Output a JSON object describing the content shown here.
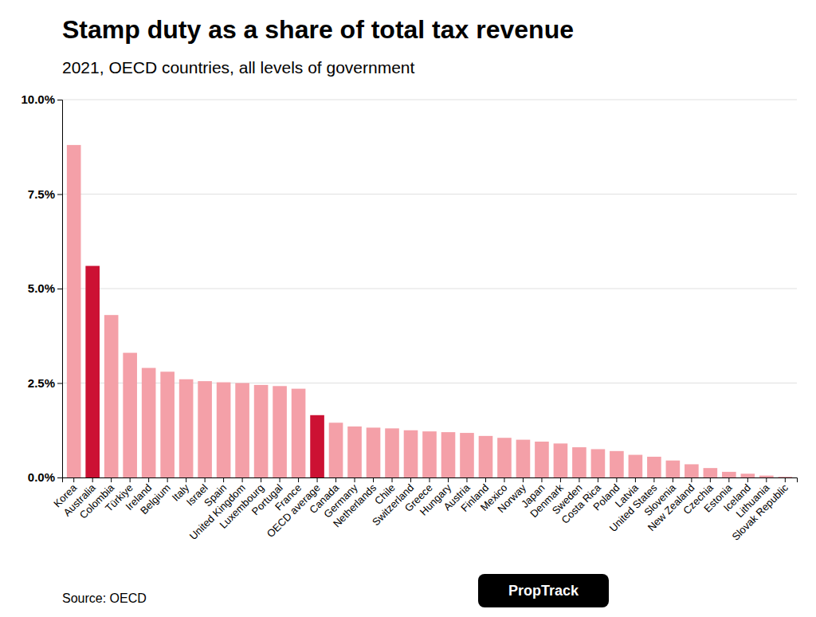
{
  "chart_data": {
    "type": "bar",
    "title": "Stamp duty as a share of total tax revenue",
    "subtitle": "2021, OECD countries, all levels of government",
    "source": "Source: OECD",
    "annotations": [
      "PropTrack"
    ],
    "categories": [
      "Korea",
      "Australia",
      "Colombia",
      "Türkiye",
      "Ireland",
      "Belgium",
      "Italy",
      "Israel",
      "Spain",
      "United Kingdom",
      "Luxembourg",
      "Portugal",
      "France",
      "OECD average",
      "Canada",
      "Germany",
      "Netherlands",
      "Chile",
      "Switzerland",
      "Greece",
      "Hungary",
      "Austria",
      "Finland",
      "Mexico",
      "Norway",
      "Japan",
      "Denmark",
      "Sweden",
      "Costa Rica",
      "Poland",
      "Latvia",
      "United States",
      "Slovenia",
      "New Zealand",
      "Czechia",
      "Estonia",
      "Iceland",
      "Lithuania",
      "Slovak Republic"
    ],
    "values": [
      0.088,
      0.056,
      0.043,
      0.033,
      0.029,
      0.028,
      0.026,
      0.0255,
      0.0252,
      0.025,
      0.0245,
      0.0242,
      0.0235,
      0.0165,
      0.0145,
      0.0135,
      0.0132,
      0.013,
      0.0125,
      0.0122,
      0.012,
      0.0118,
      0.011,
      0.0105,
      0.01,
      0.0095,
      0.009,
      0.008,
      0.0075,
      0.007,
      0.006,
      0.0055,
      0.0045,
      0.0035,
      0.0025,
      0.0015,
      0.001,
      0.0005,
      0.0002
    ],
    "colors": [
      "#f4a0a8",
      "#cc1133",
      "#f4a0a8",
      "#f4a0a8",
      "#f4a0a8",
      "#f4a0a8",
      "#f4a0a8",
      "#f4a0a8",
      "#f4a0a8",
      "#f4a0a8",
      "#f4a0a8",
      "#f4a0a8",
      "#f4a0a8",
      "#cc1133",
      "#f4a0a8",
      "#f4a0a8",
      "#f4a0a8",
      "#f4a0a8",
      "#f4a0a8",
      "#f4a0a8",
      "#f4a0a8",
      "#f4a0a8",
      "#f4a0a8",
      "#f4a0a8",
      "#f4a0a8",
      "#f4a0a8",
      "#f4a0a8",
      "#f4a0a8",
      "#f4a0a8",
      "#f4a0a8",
      "#f4a0a8",
      "#f4a0a8",
      "#f4a0a8",
      "#f4a0a8",
      "#f4a0a8",
      "#f4a0a8",
      "#f4a0a8",
      "#f4a0a8",
      "#f4a0a8"
    ],
    "ylim": [
      0,
      0.1
    ],
    "yticks": [
      {
        "value": 0.0,
        "label": "0.0%"
      },
      {
        "value": 0.025,
        "label": "2.5%"
      },
      {
        "value": 0.05,
        "label": "5.0%"
      },
      {
        "value": 0.075,
        "label": "7.5%"
      },
      {
        "value": 0.1,
        "label": "10.0%"
      }
    ],
    "grid": true
  }
}
